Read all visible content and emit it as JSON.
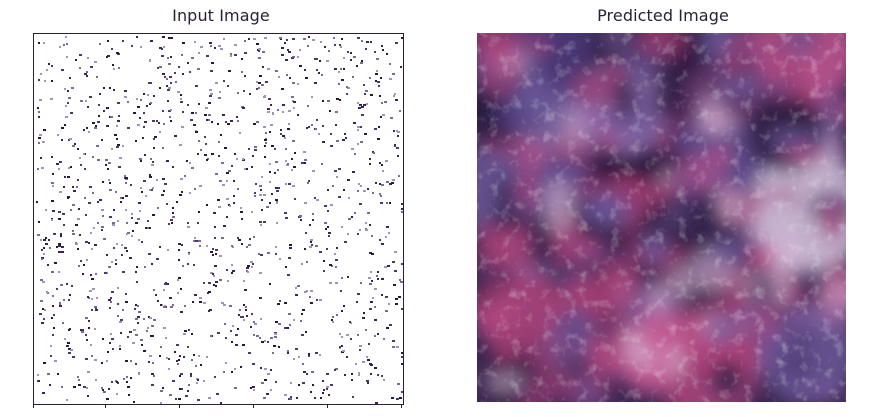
{
  "panels": [
    {
      "title": "Input Image"
    },
    {
      "title": "Predicted Image"
    }
  ],
  "colors": {
    "frame": "#2a1f36",
    "dark_purple": "#2e1d44",
    "mid_purple": "#5b4a8a",
    "magenta": "#b0457e",
    "light": "#e8dce8"
  }
}
